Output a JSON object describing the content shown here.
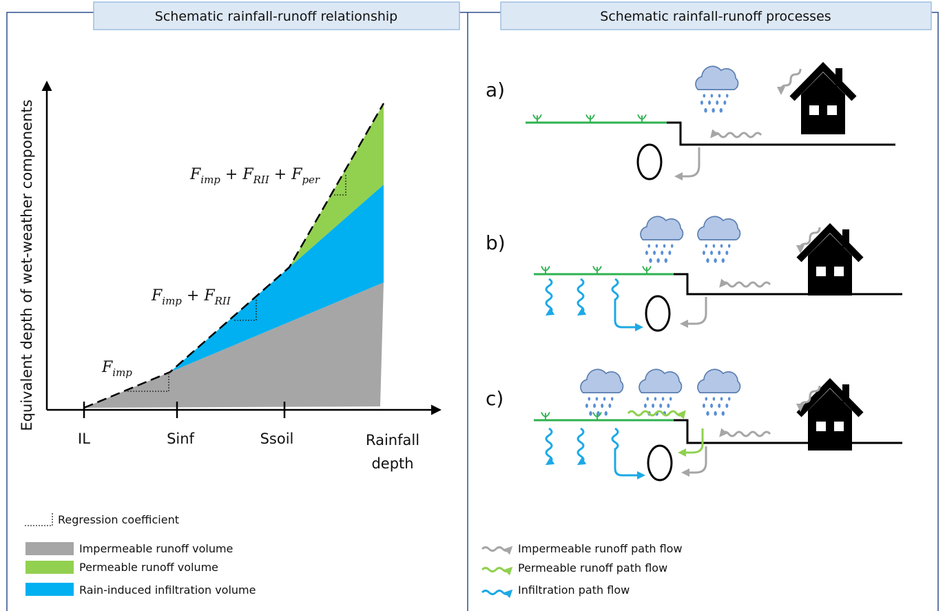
{
  "left_panel": {
    "title": "Schematic rainfall-runoff relationship",
    "y_axis_label": "Equivalent depth of wet-weather components",
    "x_ticks": [
      "IL",
      "Sinf",
      "Ssoil"
    ],
    "x_axis_label": "Rainfall depth",
    "formulas": [
      {
        "terms": [
          {
            "base": "F",
            "sub": "imp"
          }
        ]
      },
      {
        "terms": [
          {
            "base": "F",
            "sub": "imp"
          },
          {
            "base": "F",
            "sub": "RII"
          }
        ],
        "operator": "+"
      },
      {
        "terms": [
          {
            "base": "F",
            "sub": "imp"
          },
          {
            "base": "F",
            "sub": "RII"
          },
          {
            "base": "F",
            "sub": "per"
          }
        ],
        "operator": "+"
      }
    ],
    "legend": [
      "Regression coefficient",
      "Impermeable runoff volume",
      "Permeable runoff volume",
      "Rain-induced infiltration volume"
    ]
  },
  "right_panel": {
    "title": "Schematic rainfall-runoff processes",
    "scenarios": [
      "a)",
      "b)",
      "c)"
    ],
    "legend": [
      "Impermeable runoff path flow",
      "Permeable runoff path flow",
      "Infiltration path flow"
    ]
  }
}
